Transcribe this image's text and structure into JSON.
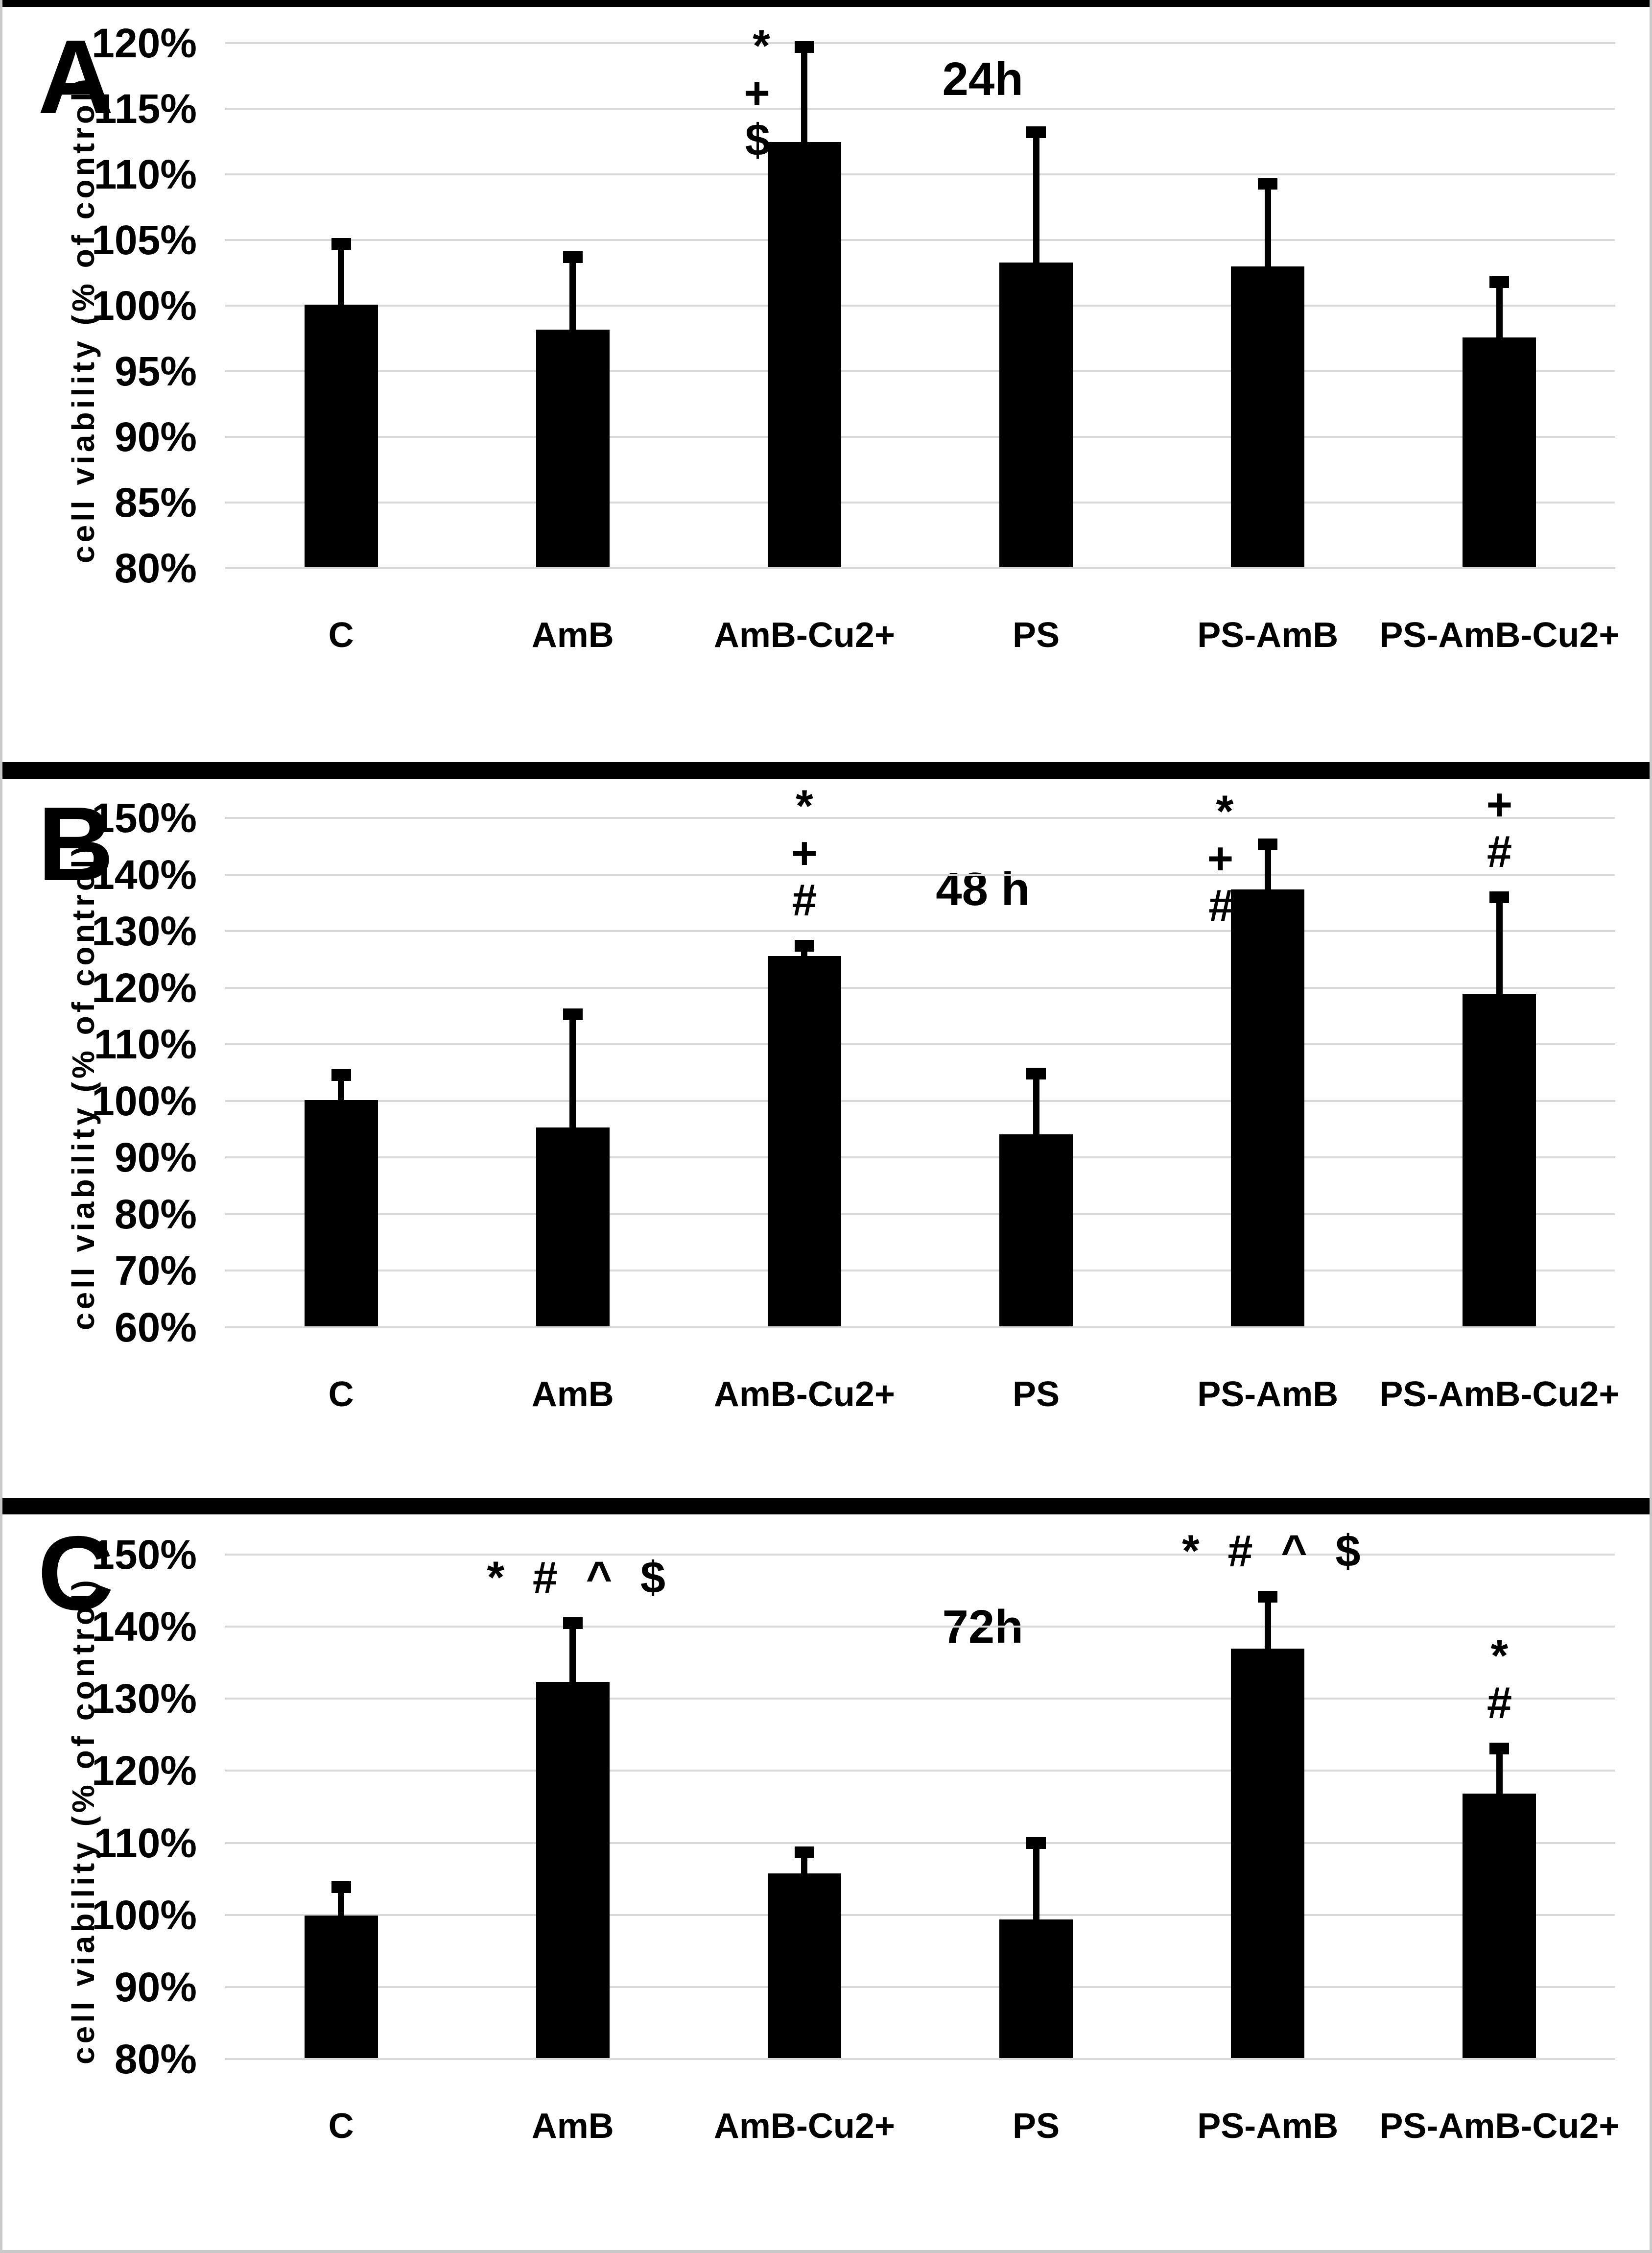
{
  "figure": {
    "y_axis_title": "cell viability (% of control)",
    "categories": [
      "C",
      "AmB",
      "AmB-Cu2+",
      "PS",
      "PS-AmB",
      "PS-AmB-Cu2+"
    ],
    "colors": {
      "bar": "#000000",
      "gridline": "#d9d9d9",
      "background": "#ffffff",
      "frame_border": "#c9c9c9",
      "panel_divider": "#000000",
      "text": "#000000"
    }
  },
  "chart_data": [
    {
      "type": "bar",
      "panel": "A",
      "title": "24h",
      "ylabel": "cell viability (% of control)",
      "ylim": [
        80,
        120
      ],
      "ystep": 5,
      "yticks": [
        "120%",
        "115%",
        "110%",
        "105%",
        "100%",
        "95%",
        "90%",
        "85%",
        "80%"
      ],
      "grid": "horizontal",
      "legend": false,
      "categories": [
        "C",
        "AmB",
        "AmB-Cu2+",
        "PS",
        "PS-AmB",
        "PS-AmB-Cu2+"
      ],
      "values": [
        100.0,
        98.1,
        112.4,
        103.2,
        102.9,
        97.5
      ],
      "error_top": [
        105.0,
        104.0,
        120.0,
        113.5,
        109.6,
        102.1
      ],
      "annotations": [
        {
          "bar": "AmB-Cu2+",
          "symbols": [
            "*",
            "+",
            "$"
          ],
          "layout": "stack",
          "position": "left-of-error-bar"
        }
      ]
    },
    {
      "type": "bar",
      "panel": "B",
      "title": "48 h",
      "ylabel": "cell viability (% of control)",
      "ylim": [
        60,
        150
      ],
      "ystep": 10,
      "yticks": [
        "150%",
        "140%",
        "130%",
        "120%",
        "110%",
        "100%",
        "90%",
        "80%",
        "70%",
        "60%"
      ],
      "grid": "horizontal",
      "legend": false,
      "categories": [
        "C",
        "AmB",
        "AmB-Cu2+",
        "PS",
        "PS-AmB",
        "PS-AmB-Cu2+"
      ],
      "values": [
        100.0,
        95.1,
        125.4,
        93.9,
        137.2,
        118.7
      ],
      "error_top": [
        105.3,
        116.0,
        128.1,
        105.5,
        146.0,
        136.7
      ],
      "annotations": [
        {
          "bar": "AmB-Cu2+",
          "symbols": [
            "*",
            "+",
            "#"
          ],
          "layout": "stack",
          "position": "above-error-bar"
        },
        {
          "bar": "PS-AmB",
          "symbols": [
            "*",
            "+",
            "#"
          ],
          "layout": "stack",
          "position": "left-of-error-bar"
        },
        {
          "bar": "PS-AmB-Cu2+",
          "symbols": [
            "+",
            "#"
          ],
          "layout": "stack",
          "position": "above-error-bar"
        }
      ]
    },
    {
      "type": "bar",
      "panel": "C",
      "title": "72h",
      "ylabel": "cell viability (% of control)",
      "ylim": [
        80,
        150
      ],
      "ystep": 10,
      "yticks": [
        "150%",
        "140%",
        "130%",
        "120%",
        "110%",
        "100%",
        "90%",
        "80%"
      ],
      "grid": "horizontal",
      "legend": false,
      "categories": [
        "C",
        "AmB",
        "AmB-Cu2+",
        "PS",
        "PS-AmB",
        "PS-AmB-Cu2+"
      ],
      "values": [
        99.8,
        132.2,
        105.6,
        99.2,
        136.8,
        116.7
      ],
      "error_top": [
        104.4,
        141.0,
        109.2,
        110.5,
        144.7,
        123.6
      ],
      "annotations": [
        {
          "bar": "AmB",
          "symbols": [
            "*",
            "#",
            "^",
            "$"
          ],
          "layout": "row",
          "position": "above-error-bar"
        },
        {
          "bar": "PS-AmB",
          "symbols": [
            "*",
            "#",
            "^",
            "$"
          ],
          "layout": "row",
          "position": "above-error-bar"
        },
        {
          "bar": "PS-AmB-Cu2+",
          "symbols": [
            "*",
            "#"
          ],
          "layout": "stack",
          "position": "above-error-bar"
        }
      ]
    }
  ]
}
